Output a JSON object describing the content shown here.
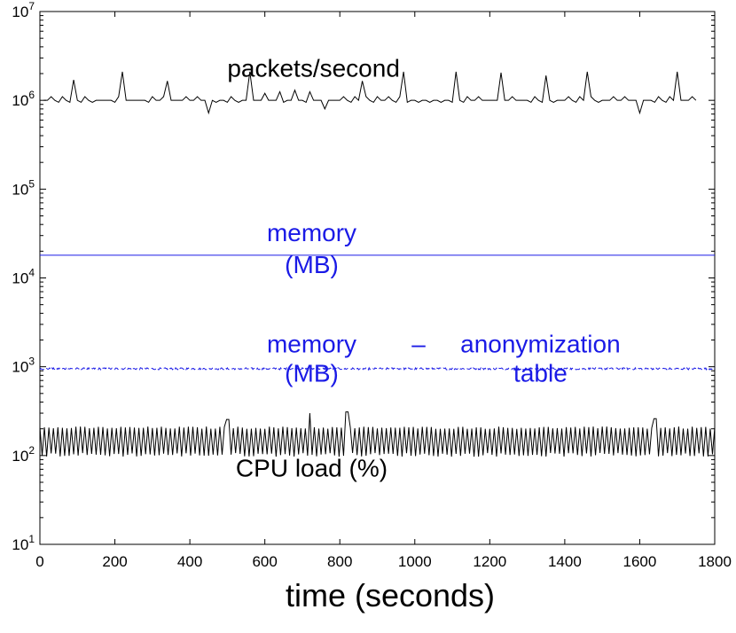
{
  "chart_data": {
    "type": "line",
    "xlabel": "time (seconds)",
    "ylabel": "",
    "title": "",
    "xlim": [
      0,
      1800
    ],
    "ylim": [
      10,
      10000000
    ],
    "y_scale": "log",
    "grid": false,
    "x_ticks": [
      0,
      200,
      400,
      600,
      800,
      1000,
      1200,
      1400,
      1600,
      1800
    ],
    "x_tick_labels": [
      "0",
      "200",
      "400",
      "600",
      "800",
      "1000",
      "1200",
      "1400",
      "1600",
      "1800"
    ],
    "y_ticks": [
      10,
      100,
      1000,
      10000,
      100000,
      1000000,
      10000000
    ],
    "y_tick_labels": [
      {
        "base": "10",
        "exp": "1"
      },
      {
        "base": "10",
        "exp": "2"
      },
      {
        "base": "10",
        "exp": "3"
      },
      {
        "base": "10",
        "exp": "4"
      },
      {
        "base": "10",
        "exp": "5"
      },
      {
        "base": "10",
        "exp": "6"
      },
      {
        "base": "10",
        "exp": "7"
      }
    ],
    "colors": {
      "black": "#000000",
      "blue": "#1a1ae6"
    },
    "annotations": [
      {
        "lines": [
          "packets/second"
        ],
        "x": 730,
        "y": 1850000,
        "color": "#000000",
        "anchor": "middle"
      },
      {
        "lines": [
          "memory",
          "(MB)"
        ],
        "x": 725,
        "y": 26000,
        "color": "#1a1ae6",
        "anchor": "middle"
      },
      {
        "lines": [
          "memory"
        ],
        "x": 725,
        "y": 1450,
        "color": "#1a1ae6",
        "anchor": "middle"
      },
      {
        "lines": [
          "(MB)"
        ],
        "x": 725,
        "y": 680,
        "color": "#1a1ae6",
        "anchor": "middle"
      },
      {
        "lines": [
          "–"
        ],
        "x": 1010,
        "y": 1450,
        "color": "#1a1ae6",
        "anchor": "middle"
      },
      {
        "lines": [
          "anonymization"
        ],
        "x": 1335,
        "y": 1450,
        "color": "#1a1ae6",
        "anchor": "middle"
      },
      {
        "lines": [
          "table"
        ],
        "x": 1335,
        "y": 680,
        "color": "#1a1ae6",
        "anchor": "middle"
      },
      {
        "lines": [
          "CPU load (%)"
        ],
        "x": 725,
        "y": 58,
        "color": "#000000",
        "anchor": "middle"
      }
    ],
    "series_spec": {
      "packets_per_second": {
        "x_start": 10,
        "x_end": 1750,
        "x_step": 10,
        "default_values": [
          1000000,
          950000,
          1100000
        ],
        "spikes": [
          {
            "x": 90,
            "y": 1700000
          },
          {
            "x": 220,
            "y": 2100000
          },
          {
            "x": 340,
            "y": 1650000
          },
          {
            "x": 450,
            "y": 720000
          },
          {
            "x": 560,
            "y": 2100000
          },
          {
            "x": 600,
            "y": 1200000
          },
          {
            "x": 640,
            "y": 1250000
          },
          {
            "x": 680,
            "y": 1300000
          },
          {
            "x": 720,
            "y": 1250000
          },
          {
            "x": 760,
            "y": 800000
          },
          {
            "x": 860,
            "y": 1650000
          },
          {
            "x": 970,
            "y": 2100000
          },
          {
            "x": 1110,
            "y": 2100000
          },
          {
            "x": 1230,
            "y": 2050000
          },
          {
            "x": 1350,
            "y": 1900000
          },
          {
            "x": 1460,
            "y": 2100000
          },
          {
            "x": 1600,
            "y": 720000
          },
          {
            "x": 1700,
            "y": 2100000
          }
        ]
      },
      "memory_mb": {
        "x_start": 0,
        "x_end": 1800,
        "value": 18000
      },
      "memory_anon_table": {
        "x_start": 0,
        "x_end": 1800,
        "base": 950,
        "jitter": 0.05
      },
      "cpu_load": {
        "x_start": 0,
        "x_end": 1800,
        "period_seconds": 12,
        "low": 100,
        "high": 210,
        "spikes": [
          {
            "x": 500,
            "y": 255
          },
          {
            "x": 720,
            "y": 300
          },
          {
            "x": 820,
            "y": 310
          },
          {
            "x": 1640,
            "y": 260
          }
        ]
      }
    },
    "series": [
      {
        "key": "packets_per_second",
        "color": "#000000",
        "style": "solid"
      },
      {
        "key": "memory_mb",
        "color": "#1a1ae6",
        "style": "solid"
      },
      {
        "key": "memory_anon_table",
        "color": "#1a1ae6",
        "style": "dashed"
      },
      {
        "key": "cpu_load",
        "color": "#000000",
        "style": "solid"
      }
    ]
  }
}
